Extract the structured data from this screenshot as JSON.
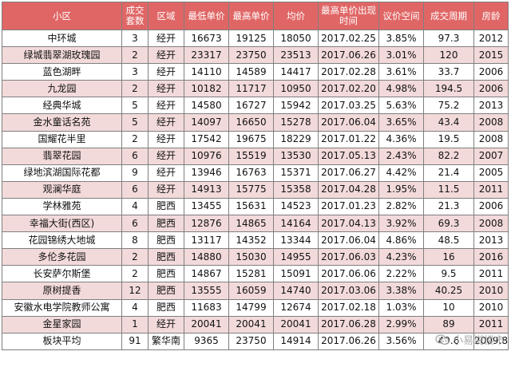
{
  "headers": [
    "小区",
    "成交套数",
    "区域",
    "最低单价",
    "最高单价",
    "均价",
    "最高单价出现时间",
    "议价空间",
    "成交周期",
    "房龄"
  ],
  "rows": [
    [
      "中环城",
      "3",
      "经开",
      "16673",
      "19125",
      "18050",
      "2017.02.25",
      "3.85%",
      "97.3",
      "2012"
    ],
    [
      "绿城翡翠湖玫瑰园",
      "2",
      "经开",
      "23317",
      "23750",
      "23513",
      "2017.06.26",
      "3.01%",
      "120",
      "2015"
    ],
    [
      "蓝色湖畔",
      "3",
      "经开",
      "14110",
      "14589",
      "14417",
      "2017.02.28",
      "3.61%",
      "33.7",
      "2006"
    ],
    [
      "九龙园",
      "2",
      "经开",
      "10182",
      "11717",
      "10950",
      "2017.02.20",
      "4.98%",
      "194.5",
      "2006"
    ],
    [
      "经典华城",
      "5",
      "经开",
      "14580",
      "16727",
      "15942",
      "2017.03.25",
      "5.63%",
      "75.2",
      "2013"
    ],
    [
      "金水童话名苑",
      "5",
      "经开",
      "14097",
      "16650",
      "15278",
      "2017.06.04",
      "3.65%",
      "43.4",
      "2008"
    ],
    [
      "国耀花半里",
      "2",
      "经开",
      "17542",
      "19675",
      "18229",
      "2017.01.22",
      "4.36%",
      "19.5",
      "2008"
    ],
    [
      "翡翠花园",
      "6",
      "经开",
      "10976",
      "15519",
      "13530",
      "2017.05.13",
      "2.43%",
      "82.2",
      "2007"
    ],
    [
      "绿地滨湖国际花都",
      "9",
      "经开",
      "13946",
      "16763",
      "15371",
      "2017.06.27",
      "4.42%",
      "21.4",
      "2005"
    ],
    [
      "观澜华庭",
      "6",
      "经开",
      "14913",
      "15775",
      "15358",
      "2017.04.28",
      "1.95%",
      "11.5",
      "2011"
    ],
    [
      "学林雅苑",
      "4",
      "肥西",
      "13455",
      "15631",
      "14523",
      "2017.01.23",
      "2.82%",
      "21.3",
      "2006"
    ],
    [
      "幸福大街(西区)",
      "6",
      "肥西",
      "12876",
      "14865",
      "14164",
      "2017.04.13",
      "3.92%",
      "69.3",
      "2008"
    ],
    [
      "花园锦绣大地城",
      "8",
      "肥西",
      "13117",
      "14352",
      "13344",
      "2017.06.04",
      "4.86%",
      "48.5",
      "2013"
    ],
    [
      "多伦多花园",
      "2",
      "肥西",
      "14880",
      "15030",
      "14955",
      "2017.06.03",
      "4.23%",
      "16",
      "2016"
    ],
    [
      "长安萨尔斯堡",
      "2",
      "肥西",
      "14867",
      "15281",
      "15091",
      "2017.06.06",
      "2.22%",
      "9.5",
      "2011"
    ],
    [
      "原树提香",
      "12",
      "肥西",
      "13555",
      "16059",
      "14740",
      "2017.03.06",
      "3.38%",
      "40.25",
      "2010"
    ],
    [
      "安徽水电学院教师公寓",
      "4",
      "肥西",
      "11683",
      "14799",
      "12674",
      "2017.02.18",
      "1.03%",
      "10",
      "2010"
    ],
    [
      "金星家园",
      "1",
      "经开",
      "20041",
      "20041",
      "20041",
      "2017.06.28",
      "2.99%",
      "89",
      "2011"
    ],
    [
      "板块平均",
      "91",
      "繁华南",
      "9365",
      "23750",
      "14914",
      "2017.06.26",
      "3.56%",
      "49.6",
      "2009.8"
    ]
  ],
  "watermark": "小易说楼市",
  "icons": {
    "watermark": "wechat-icon"
  }
}
